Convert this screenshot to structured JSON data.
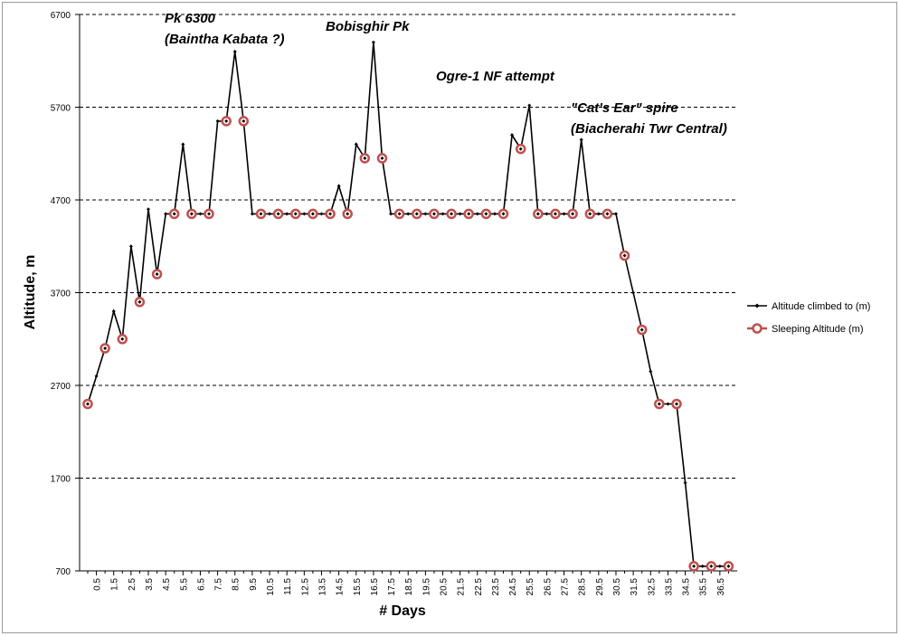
{
  "chart_data": {
    "type": "line",
    "title": "",
    "xlabel": "# Days",
    "ylabel": "Altitude, m",
    "ylim": [
      700,
      6700
    ],
    "yticks": [
      700,
      1700,
      2700,
      3700,
      4700,
      5700,
      6700
    ],
    "grid": "horizontal dashed",
    "legend_position": "right",
    "x_tick_labels": [
      "0.5",
      "1.5",
      "2.5",
      "3.5",
      "4.5",
      "5.5",
      "6.5",
      "7.5",
      "8.5",
      "9.5",
      "10.5",
      "11.5",
      "12.5",
      "13.5",
      "14.5",
      "15.5",
      "16.5",
      "17.5",
      "18.5",
      "19.5",
      "20.5",
      "21.5",
      "22.5",
      "23.5",
      "24.5",
      "25.5",
      "26.5",
      "27.5",
      "28.5",
      "29.5",
      "30.5",
      "31.5",
      "32.5",
      "33.5",
      "34.5",
      "35.5",
      "36.5"
    ],
    "series": [
      {
        "name": "Altitude climbed to (m)",
        "color": "#000000",
        "marker": "small-diamond",
        "points": [
          [
            0,
            2500
          ],
          [
            0.5,
            2800
          ],
          [
            1,
            3100
          ],
          [
            1.5,
            3500
          ],
          [
            2,
            3200
          ],
          [
            2.5,
            4200
          ],
          [
            3,
            3600
          ],
          [
            3.5,
            4600
          ],
          [
            4,
            3900
          ],
          [
            4.5,
            4550
          ],
          [
            5,
            4550
          ],
          [
            5.5,
            5300
          ],
          [
            6,
            4550
          ],
          [
            6.5,
            4550
          ],
          [
            7,
            4550
          ],
          [
            7.5,
            5550
          ],
          [
            8,
            5550
          ],
          [
            8.5,
            6300
          ],
          [
            9,
            5550
          ],
          [
            9.5,
            4550
          ],
          [
            10,
            4550
          ],
          [
            10.5,
            4550
          ],
          [
            11,
            4550
          ],
          [
            11.5,
            4550
          ],
          [
            12,
            4550
          ],
          [
            12.5,
            4550
          ],
          [
            13,
            4550
          ],
          [
            13.5,
            4550
          ],
          [
            14,
            4550
          ],
          [
            14.5,
            4850
          ],
          [
            15,
            4550
          ],
          [
            15.5,
            5300
          ],
          [
            16,
            5150
          ],
          [
            16.5,
            6400
          ],
          [
            17,
            5150
          ],
          [
            17.5,
            4550
          ],
          [
            18,
            4550
          ],
          [
            18.5,
            4550
          ],
          [
            19,
            4550
          ],
          [
            19.5,
            4550
          ],
          [
            20,
            4550
          ],
          [
            20.5,
            4550
          ],
          [
            21,
            4550
          ],
          [
            21.5,
            4550
          ],
          [
            22,
            4550
          ],
          [
            22.5,
            4550
          ],
          [
            23,
            4550
          ],
          [
            23.5,
            4550
          ],
          [
            24,
            4550
          ],
          [
            24.5,
            5400
          ],
          [
            25,
            5250
          ],
          [
            25.5,
            5720
          ],
          [
            26,
            4550
          ],
          [
            26.5,
            4550
          ],
          [
            27,
            4550
          ],
          [
            27.5,
            4550
          ],
          [
            28,
            4550
          ],
          [
            28.5,
            5350
          ],
          [
            29,
            4550
          ],
          [
            29.5,
            4550
          ],
          [
            30,
            4550
          ],
          [
            30.5,
            4550
          ],
          [
            31,
            4100
          ],
          [
            31.5,
            3700
          ],
          [
            32,
            3300
          ],
          [
            32.5,
            2850
          ],
          [
            33,
            2500
          ],
          [
            33.5,
            2500
          ],
          [
            34,
            2500
          ],
          [
            34.5,
            1650
          ],
          [
            35,
            750
          ],
          [
            35.5,
            750
          ],
          [
            36,
            750
          ],
          [
            36.5,
            750
          ],
          [
            37,
            750
          ]
        ]
      },
      {
        "name": "Sleeping Altitude (m)",
        "color": "#c0504d",
        "marker": "circle",
        "points": [
          [
            0,
            2500
          ],
          [
            1,
            3100
          ],
          [
            2,
            3200
          ],
          [
            3,
            3600
          ],
          [
            4,
            3900
          ],
          [
            5,
            4550
          ],
          [
            6,
            4550
          ],
          [
            7,
            4550
          ],
          [
            8,
            5550
          ],
          [
            9,
            5550
          ],
          [
            10,
            4550
          ],
          [
            11,
            4550
          ],
          [
            12,
            4550
          ],
          [
            13,
            4550
          ],
          [
            14,
            4550
          ],
          [
            15,
            4550
          ],
          [
            16,
            5150
          ],
          [
            17,
            5150
          ],
          [
            18,
            4550
          ],
          [
            19,
            4550
          ],
          [
            20,
            4550
          ],
          [
            21,
            4550
          ],
          [
            22,
            4550
          ],
          [
            23,
            4550
          ],
          [
            24,
            4550
          ],
          [
            25,
            5250
          ],
          [
            26,
            4550
          ],
          [
            27,
            4550
          ],
          [
            28,
            4550
          ],
          [
            29,
            4550
          ],
          [
            30,
            4550
          ],
          [
            31,
            4100
          ],
          [
            32,
            3300
          ],
          [
            33,
            2500
          ],
          [
            34,
            2500
          ],
          [
            35,
            750
          ],
          [
            36,
            750
          ],
          [
            37,
            750
          ]
        ]
      }
    ],
    "annotations": [
      {
        "text": "Pk 6300",
        "x": 8.5,
        "y": 6300
      },
      {
        "text": "(Baintha Kabata ?)",
        "x": 8.5,
        "y": 6300
      },
      {
        "text": "Bobisghir Pk",
        "x": 16.5,
        "y": 6400
      },
      {
        "text": "Ogre-1 NF attempt",
        "x": 25.5,
        "y": 5720
      },
      {
        "text": "\"Cat's Ear\" spire",
        "x": 28.5,
        "y": 5350
      },
      {
        "text": "(Biacherahi Twr Central)",
        "x": 28.5,
        "y": 5350
      }
    ]
  }
}
